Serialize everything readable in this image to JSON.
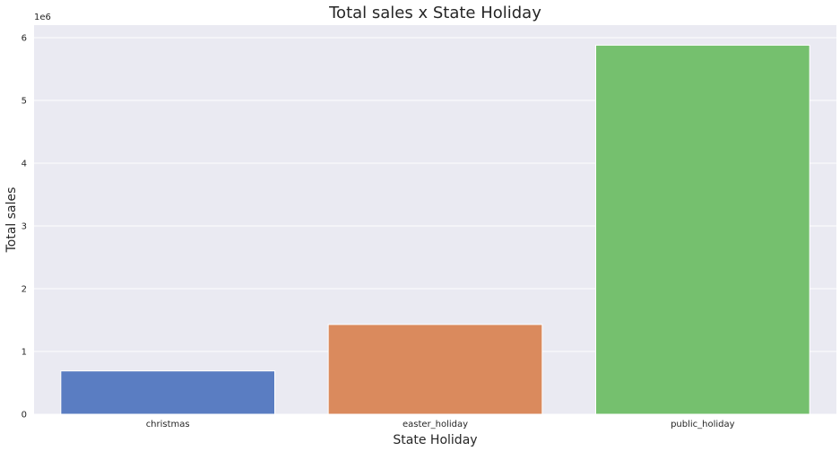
{
  "chart_data": {
    "type": "bar",
    "title": "Total sales x State Holiday",
    "xlabel": "State Holiday",
    "ylabel": "Total sales",
    "y_offset_label": "1e6",
    "categories": [
      "christmas",
      "easter_holiday",
      "public_holiday"
    ],
    "values": [
      690000,
      1430000,
      5880000
    ],
    "ylim": [
      0,
      6200000
    ],
    "yticks": [
      0,
      1000000,
      2000000,
      3000000,
      4000000,
      5000000,
      6000000
    ],
    "ytick_labels": [
      "0",
      "1",
      "2",
      "3",
      "4",
      "5",
      "6"
    ],
    "colors": [
      "#5a7dc2",
      "#da8a5d",
      "#75c06e"
    ],
    "grid": true,
    "background": "#eaeaf2"
  }
}
